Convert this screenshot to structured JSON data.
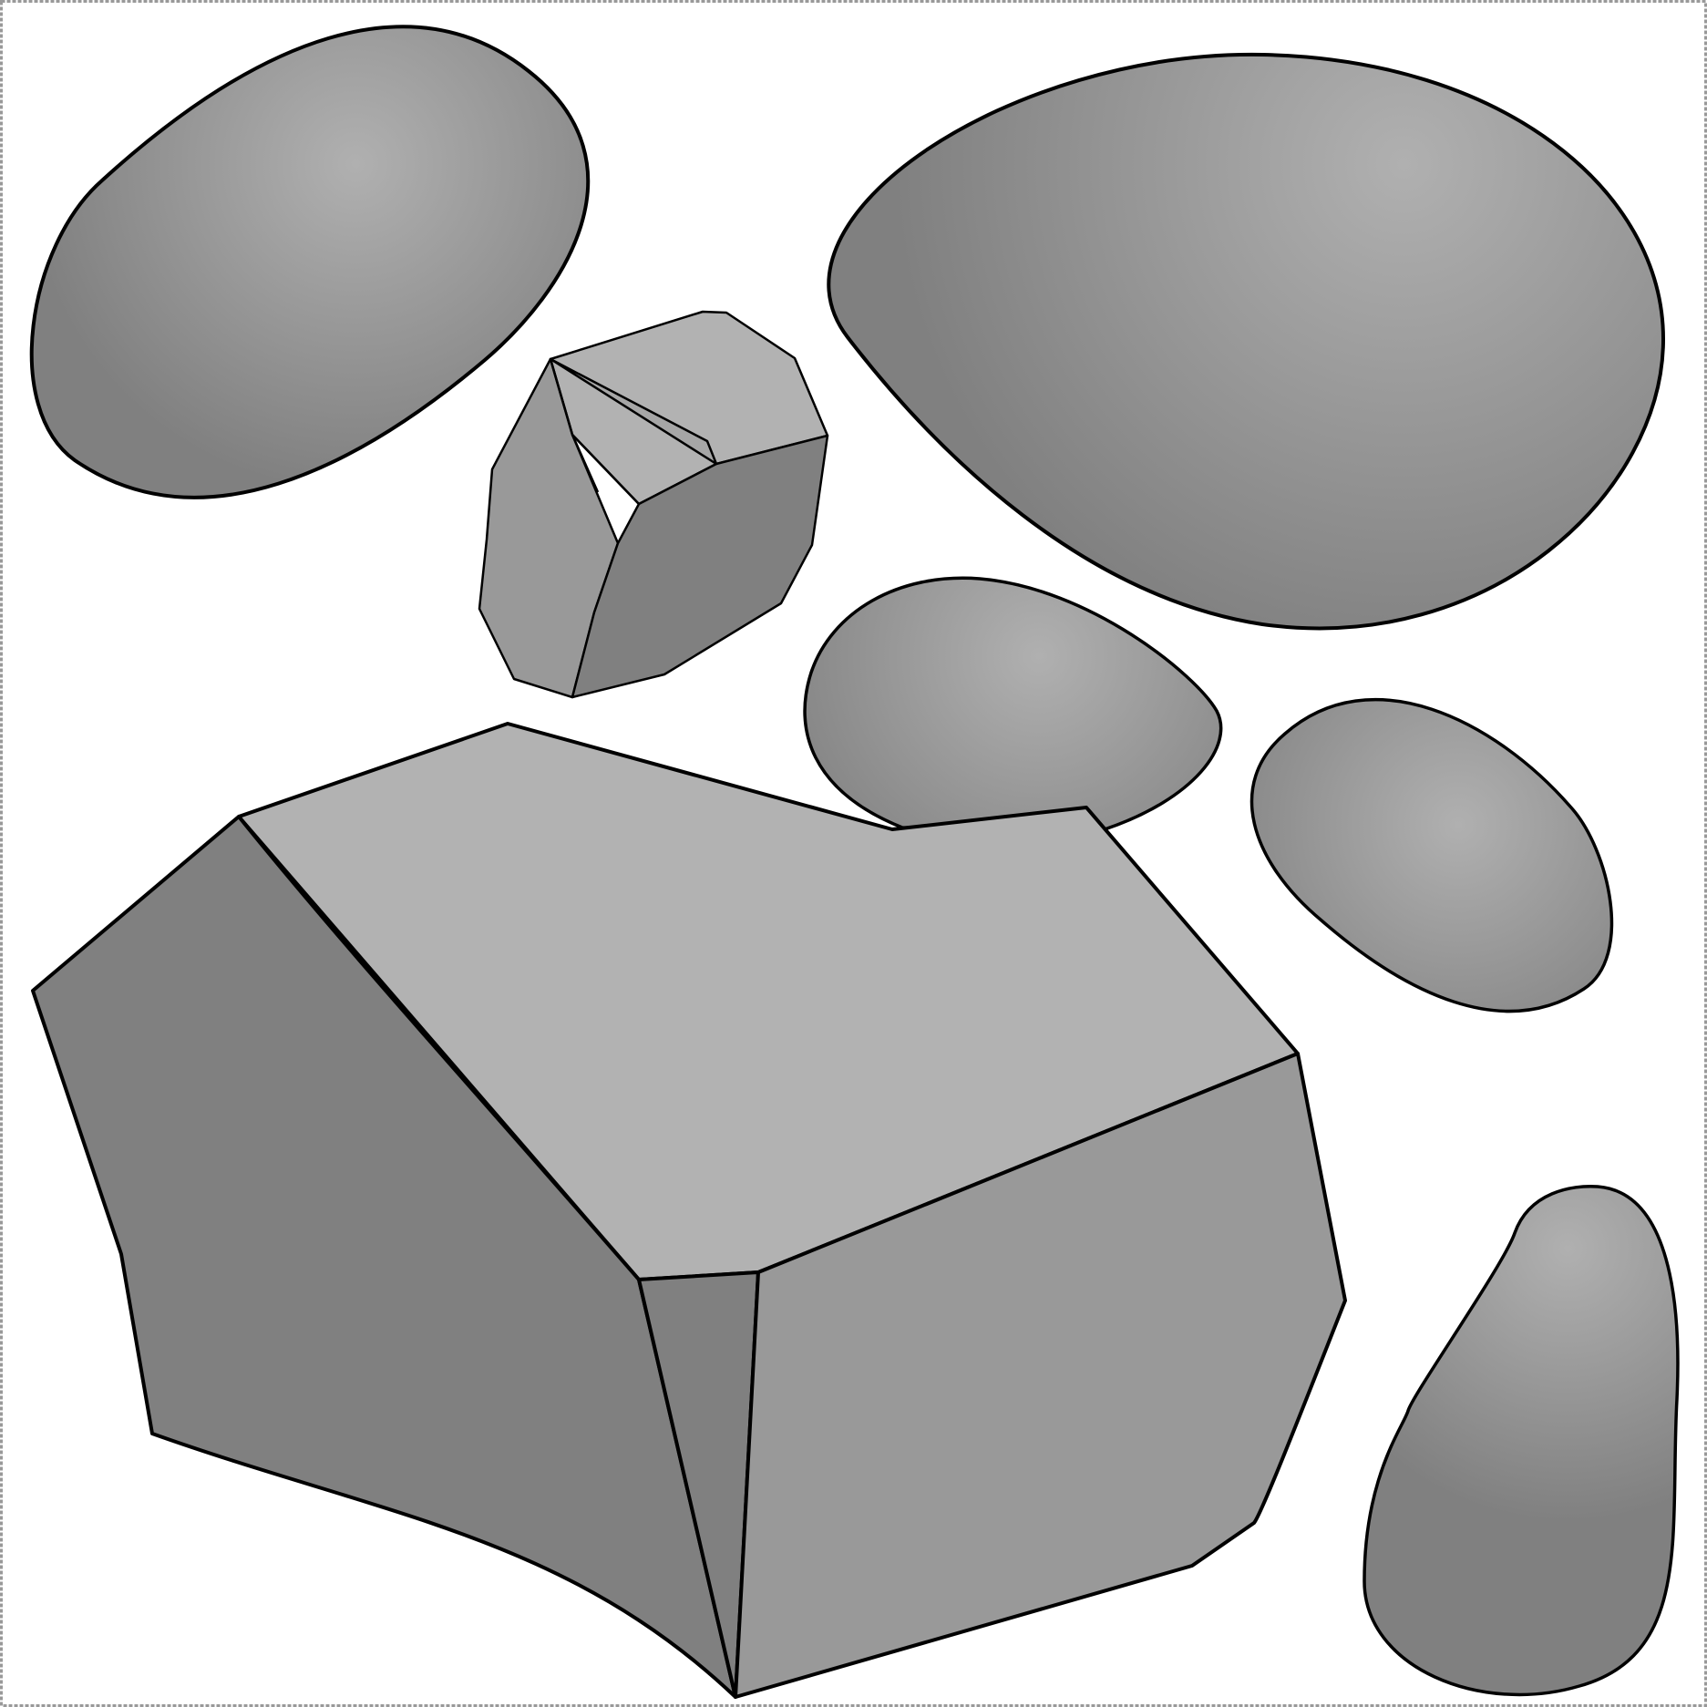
{
  "scene": {
    "title": "",
    "background_color": "#ffffff",
    "frame_color": "#999999",
    "outline_color": "#000000",
    "shades": {
      "top_face": "#b2b2b2",
      "mid_face": "#999999",
      "dark_face": "#808080",
      "highlight": "#b0b0b0"
    },
    "objects": [
      {
        "kind": "rounded-stone",
        "label": "stone-upper-left"
      },
      {
        "kind": "rounded-stone",
        "label": "stone-upper-right-large"
      },
      {
        "kind": "faceted-rock",
        "label": "small-faceted-rock"
      },
      {
        "kind": "rounded-stone",
        "label": "stone-middle"
      },
      {
        "kind": "rounded-stone",
        "label": "stone-right-middle"
      },
      {
        "kind": "faceted-rock",
        "label": "large-faceted-rock"
      },
      {
        "kind": "rounded-stone",
        "label": "stone-lower-right"
      }
    ]
  }
}
